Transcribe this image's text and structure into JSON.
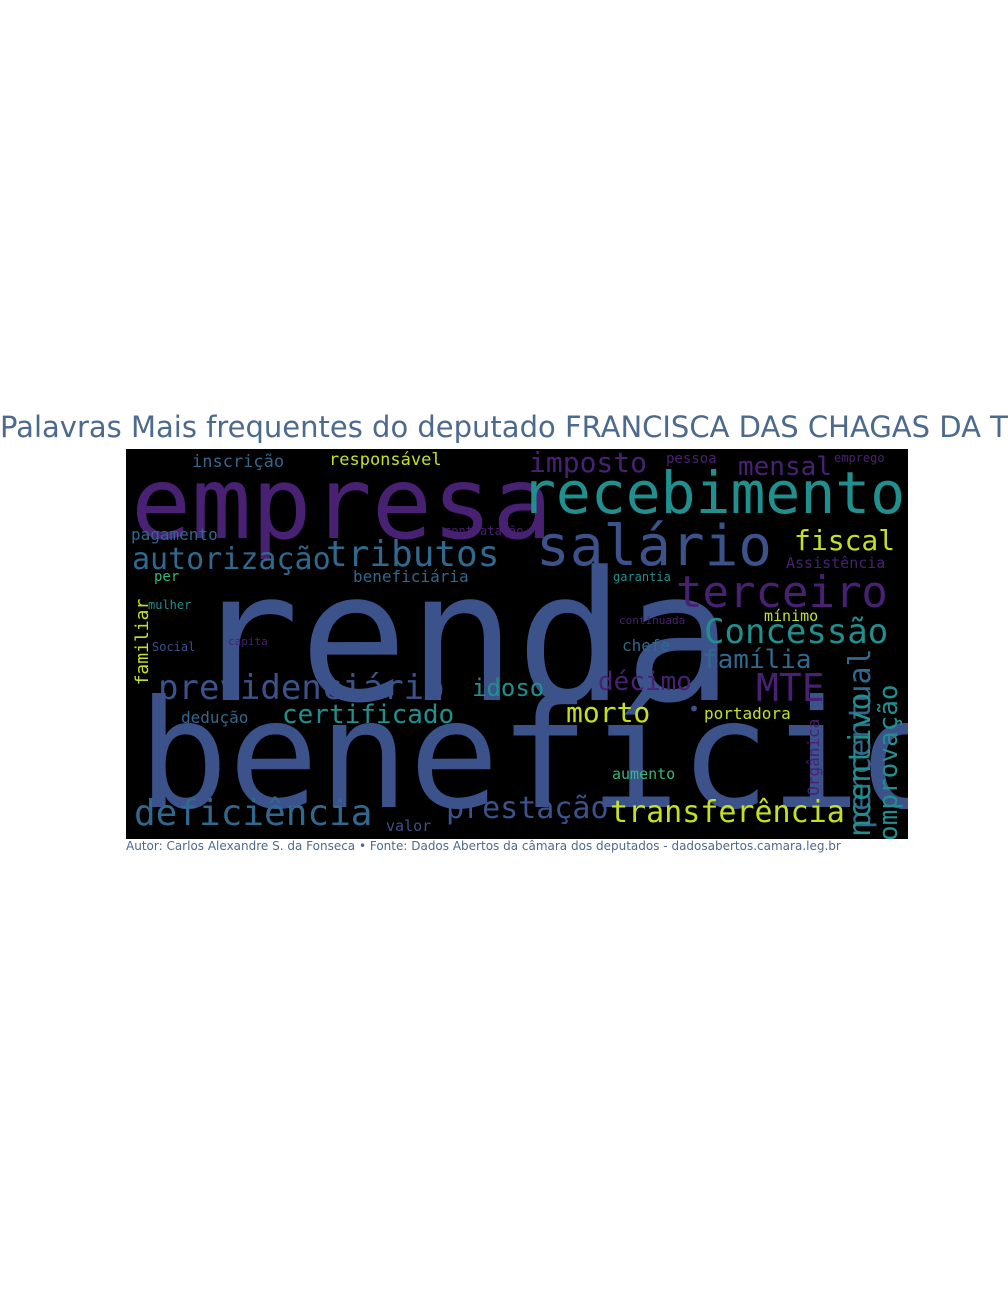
{
  "title": "Palavras Mais frequentes do deputado FRANCISCA DAS CHAGAS DA TRINDADE",
  "footer": "Autor: Carlos Alexandre S. da Fonseca • Fonte: Dados Abertos da câmara dos deputados - dadosabertos.camara.leg.br",
  "colors": {
    "purple": "#482173",
    "darkblue": "#3b528b",
    "blue": "#31688e",
    "teal": "#218f8d",
    "green": "#35b779",
    "yellow": "#c5e021"
  },
  "chart_data": {
    "type": "wordcloud",
    "words": [
      {
        "text": "renda",
        "color": "darkblue"
      },
      {
        "text": "benefício",
        "color": "darkblue"
      },
      {
        "text": "empresa",
        "color": "purple"
      },
      {
        "text": "recebimento",
        "color": "teal"
      },
      {
        "text": "salário",
        "color": "darkblue"
      },
      {
        "text": "tributos",
        "color": "blue"
      },
      {
        "text": "terceiro",
        "color": "purple"
      },
      {
        "text": "previdenciário",
        "color": "darkblue"
      },
      {
        "text": "autorização",
        "color": "blue"
      },
      {
        "text": "Concessão",
        "color": "teal"
      },
      {
        "text": "deficiência",
        "color": "blue"
      },
      {
        "text": "transferência",
        "color": "yellow"
      },
      {
        "text": "prestação",
        "color": "darkblue"
      },
      {
        "text": "certificado",
        "color": "teal"
      },
      {
        "text": "imposto",
        "color": "purple"
      },
      {
        "text": "fiscal",
        "color": "yellow"
      },
      {
        "text": "mensal",
        "color": "purple"
      },
      {
        "text": "família",
        "color": "blue"
      },
      {
        "text": "décimo",
        "color": "purple"
      },
      {
        "text": "MTE",
        "color": "purple"
      },
      {
        "text": "idoso",
        "color": "teal"
      },
      {
        "text": "morto",
        "color": "yellow"
      },
      {
        "text": "percentual",
        "color": "blue"
      },
      {
        "text": "incentivo",
        "color": "teal"
      },
      {
        "text": "comprovação",
        "color": "teal"
      },
      {
        "text": "responsável",
        "color": "yellow"
      },
      {
        "text": "inscrição",
        "color": "blue"
      },
      {
        "text": "pagamento",
        "color": "blue"
      },
      {
        "text": "dedução",
        "color": "blue"
      },
      {
        "text": "beneficiária",
        "color": "blue"
      },
      {
        "text": "familiar",
        "color": "yellow"
      },
      {
        "text": "portadora",
        "color": "yellow"
      },
      {
        "text": "aumento",
        "color": "green"
      },
      {
        "text": "mínimo",
        "color": "yellow"
      },
      {
        "text": "chefe",
        "color": "blue"
      },
      {
        "text": "Orgânica",
        "color": "purple"
      },
      {
        "text": "valor",
        "color": "darkblue"
      },
      {
        "text": "Assistência",
        "color": "purple"
      },
      {
        "text": "pessoa",
        "color": "purple"
      },
      {
        "text": "emprego",
        "color": "purple"
      },
      {
        "text": "contratação",
        "color": "purple"
      },
      {
        "text": "garantia",
        "color": "teal"
      },
      {
        "text": "per",
        "color": "green"
      },
      {
        "text": "mulher",
        "color": "teal"
      },
      {
        "text": "continuada",
        "color": "purple"
      },
      {
        "text": "Social",
        "color": "darkblue"
      },
      {
        "text": "capita",
        "color": "purple"
      },
      {
        "text": "•",
        "color": "darkblue"
      }
    ]
  }
}
